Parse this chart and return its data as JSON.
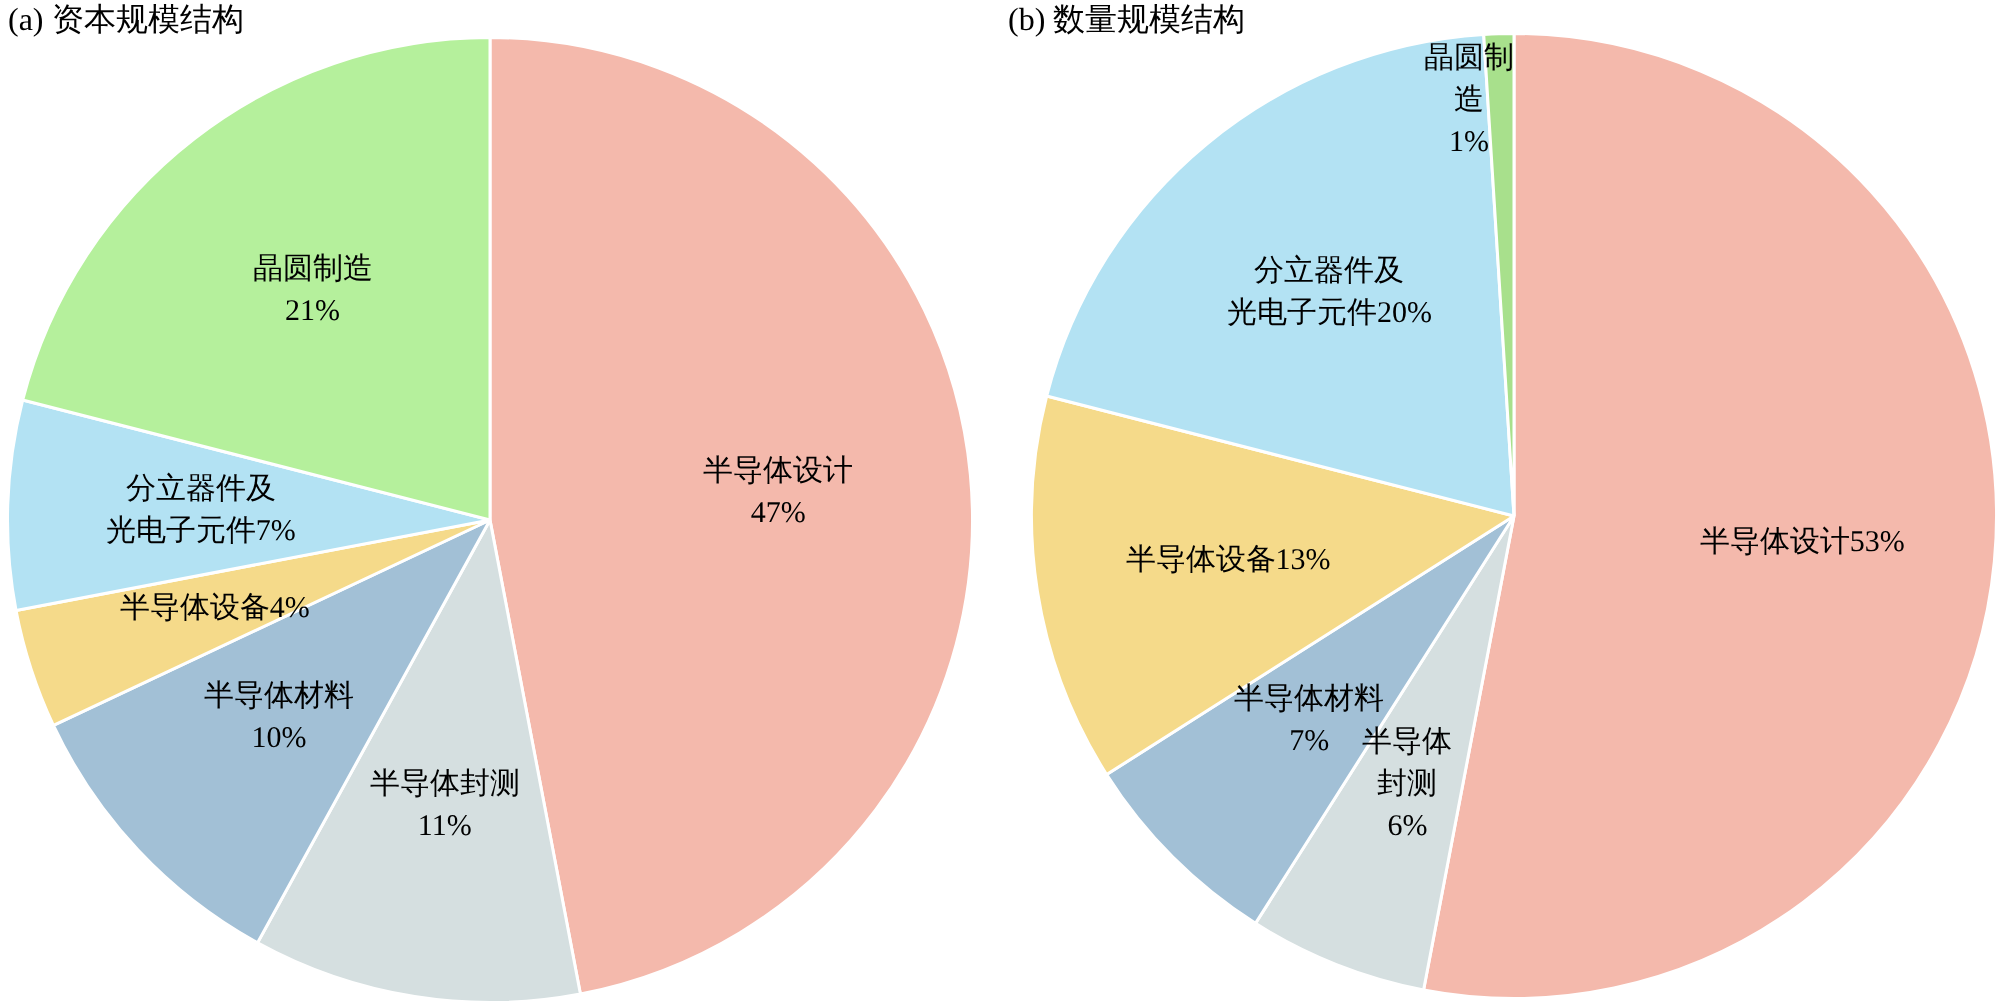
{
  "chart_data": [
    {
      "type": "pie",
      "title": "(a) 资本规模结构",
      "categories": [
        "半导体设计",
        "半导体封测",
        "半导体材料",
        "半导体设备",
        "分立器件及光电子元件",
        "晶圆制造"
      ],
      "values": [
        47,
        11,
        10,
        4,
        7,
        21
      ],
      "value_labels": [
        "47%",
        "11%",
        "10%",
        "4%",
        "7%",
        "21%"
      ],
      "colors": [
        "#f4b9ac",
        "#d5dfe0",
        "#a2c0d6",
        "#f5da8a",
        "#b3e2f3",
        "#b5f09c"
      ]
    },
    {
      "type": "pie",
      "title": "(b) 数量规模结构",
      "categories": [
        "半导体设计",
        "半导体封测",
        "半导体材料",
        "半导体设备",
        "分立器件及光电子元件",
        "晶圆制造"
      ],
      "values": [
        53,
        6,
        7,
        13,
        20,
        1
      ],
      "value_labels": [
        "53%",
        "6%",
        "7%",
        "13%",
        "20%",
        "1%"
      ],
      "colors": [
        "#f4b9ac",
        "#d5dfe0",
        "#a2c0d6",
        "#f5da8a",
        "#b3e2f3",
        "#a8e08c"
      ]
    }
  ]
}
